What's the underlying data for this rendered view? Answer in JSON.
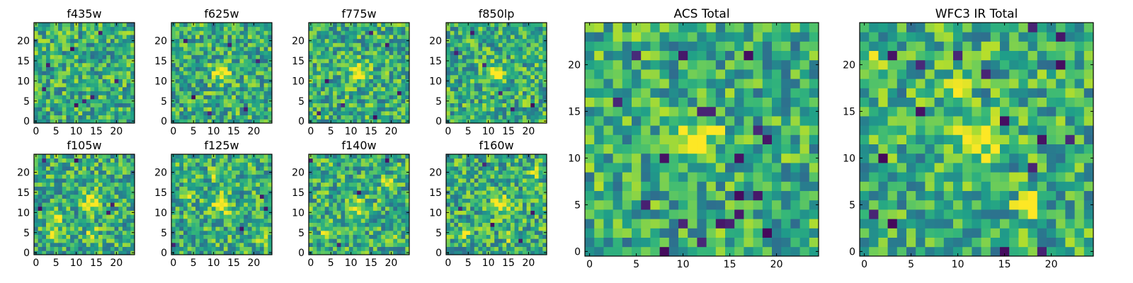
{
  "chart_data": [
    {
      "type": "heatmap",
      "title": "f435w",
      "xticks": [
        "0",
        "5",
        "10",
        "15",
        "20"
      ],
      "yticks": [
        "0",
        "5",
        "10",
        "15",
        "20"
      ],
      "xlim": [
        -0.5,
        24.5
      ],
      "ylim": [
        -0.5,
        24.5
      ],
      "peak": null,
      "hot_spots": [],
      "dark_spots": [
        [
          2,
          8
        ],
        [
          20,
          10
        ],
        [
          9,
          18
        ],
        [
          12,
          5
        ],
        [
          16,
          22
        ],
        [
          10,
          4
        ],
        [
          14,
          6
        ],
        [
          3,
          14
        ]
      ],
      "noise_seed": 11
    },
    {
      "type": "heatmap",
      "title": "f625w",
      "xticks": [
        "0",
        "5",
        "10",
        "15",
        "20"
      ],
      "yticks": [
        "0",
        "5",
        "10",
        "15",
        "20"
      ],
      "xlim": [
        -0.5,
        24.5
      ],
      "ylim": [
        -0.5,
        24.5
      ],
      "peak": [
        12,
        12
      ],
      "hot_spots": [],
      "dark_spots": [
        [
          5,
          6
        ],
        [
          18,
          3
        ],
        [
          21,
          15
        ],
        [
          3,
          20
        ],
        [
          14,
          19
        ],
        [
          9,
          2
        ]
      ],
      "noise_seed": 23
    },
    {
      "type": "heatmap",
      "title": "f775w",
      "xticks": [
        "0",
        "5",
        "10",
        "15",
        "20"
      ],
      "yticks": [
        "0",
        "5",
        "10",
        "15",
        "20"
      ],
      "xlim": [
        -0.5,
        24.5
      ],
      "ylim": [
        -0.5,
        24.5
      ],
      "peak": [
        12,
        12
      ],
      "hot_spots": [],
      "dark_spots": [
        [
          4,
          10
        ],
        [
          19,
          19
        ],
        [
          8,
          4
        ],
        [
          2,
          2
        ],
        [
          16,
          1
        ],
        [
          22,
          7
        ],
        [
          15,
          22
        ]
      ],
      "noise_seed": 37
    },
    {
      "type": "heatmap",
      "title": "f850lp",
      "xticks": [
        "0",
        "5",
        "10",
        "15",
        "20"
      ],
      "yticks": [
        "0",
        "5",
        "10",
        "15",
        "20"
      ],
      "xlim": [
        -0.5,
        24.5
      ],
      "ylim": [
        -0.5,
        24.5
      ],
      "peak": [
        12,
        12
      ],
      "hot_spots": [],
      "dark_spots": [
        [
          2,
          17
        ],
        [
          16,
          3
        ],
        [
          21,
          4
        ],
        [
          9,
          14
        ],
        [
          6,
          22
        ],
        [
          13,
          7
        ]
      ],
      "noise_seed": 51
    },
    {
      "type": "heatmap",
      "title": "f105w",
      "xticks": [
        "0",
        "5",
        "10",
        "15",
        "20"
      ],
      "yticks": [
        "0",
        "5",
        "10",
        "15",
        "20"
      ],
      "xlim": [
        -0.5,
        24.5
      ],
      "ylim": [
        -0.5,
        24.5
      ],
      "peak": [
        14,
        13
      ],
      "hot_spots": [
        [
          5,
          9
        ],
        [
          4,
          5
        ],
        [
          14,
          5
        ]
      ],
      "dark_spots": [
        [
          10,
          23
        ],
        [
          2,
          23
        ],
        [
          18,
          10
        ],
        [
          19,
          12
        ],
        [
          1,
          11
        ]
      ],
      "noise_seed": 67
    },
    {
      "type": "heatmap",
      "title": "f125w",
      "xticks": [
        "0",
        "5",
        "10",
        "15",
        "20"
      ],
      "yticks": [
        "0",
        "5",
        "10",
        "15",
        "20"
      ],
      "xlim": [
        -0.5,
        24.5
      ],
      "ylim": [
        -0.5,
        24.5
      ],
      "peak": [
        12,
        12
      ],
      "hot_spots": [
        [
          4,
          14
        ],
        [
          10,
          20
        ],
        [
          22,
          3
        ]
      ],
      "dark_spots": [
        [
          22,
          14
        ],
        [
          0,
          2
        ],
        [
          17,
          6
        ],
        [
          23,
          11
        ]
      ],
      "noise_seed": 79
    },
    {
      "type": "heatmap",
      "title": "f140w",
      "xticks": [
        "0",
        "5",
        "10",
        "15",
        "20"
      ],
      "yticks": [
        "0",
        "5",
        "10",
        "15",
        "20"
      ],
      "xlim": [
        -0.5,
        24.5
      ],
      "ylim": [
        -0.5,
        24.5
      ],
      "peak": [
        12,
        11
      ],
      "hot_spots": [
        [
          19,
          18
        ],
        [
          4,
          5
        ],
        [
          20,
          4
        ]
      ],
      "dark_spots": [
        [
          0,
          23
        ],
        [
          19,
          23
        ],
        [
          7,
          2
        ],
        [
          12,
          15
        ]
      ],
      "noise_seed": 83
    },
    {
      "type": "heatmap",
      "title": "f160w",
      "xticks": [
        "0",
        "5",
        "10",
        "15",
        "20"
      ],
      "yticks": [
        "0",
        "5",
        "10",
        "15",
        "20"
      ],
      "xlim": [
        -0.5,
        24.5
      ],
      "ylim": [
        -0.5,
        24.5
      ],
      "peak": [
        13,
        12
      ],
      "hot_spots": [
        [
          4,
          5
        ],
        [
          16,
          4
        ],
        [
          21,
          20
        ]
      ],
      "dark_spots": [
        [
          3,
          11
        ],
        [
          21,
          10
        ],
        [
          9,
          22
        ],
        [
          18,
          3
        ],
        [
          11,
          7
        ]
      ],
      "noise_seed": 97
    },
    {
      "type": "heatmap",
      "title": "ACS Total",
      "xticks": [
        "0",
        "5",
        "10",
        "15",
        "20"
      ],
      "yticks": [
        "0",
        "5",
        "10",
        "15",
        "20"
      ],
      "xlim": [
        -0.5,
        24.5
      ],
      "ylim": [
        -0.5,
        24.5
      ],
      "peak": [
        11.5,
        12
      ],
      "hot_spots": [],
      "dark_spots": [
        [
          3,
          16
        ],
        [
          8,
          10
        ],
        [
          8,
          0
        ],
        [
          16,
          10
        ],
        [
          16,
          4
        ],
        [
          16,
          6
        ],
        [
          18,
          13
        ],
        [
          12,
          15
        ],
        [
          13,
          15
        ],
        [
          19,
          12
        ],
        [
          14,
          3
        ],
        [
          12,
          1
        ],
        [
          6,
          5
        ],
        [
          18,
          6
        ],
        [
          10,
          21
        ],
        [
          17,
          21
        ],
        [
          5,
          21
        ],
        [
          19,
          2
        ],
        [
          10,
          3
        ],
        [
          15,
          3
        ]
      ],
      "noise_seed": 131
    },
    {
      "type": "heatmap",
      "title": "WFC3 IR Total",
      "xticks": [
        "0",
        "5",
        "10",
        "15",
        "20"
      ],
      "yticks": [
        "0",
        "5",
        "10",
        "15",
        "20"
      ],
      "xlim": [
        -0.5,
        24.5
      ],
      "ylim": [
        -0.5,
        24.5
      ],
      "peak": [
        12,
        12
      ],
      "hot_spots": [
        [
          17.5,
          5
        ],
        [
          1,
          20
        ],
        [
          10,
          17
        ]
      ],
      "dark_spots": [
        [
          3,
          21
        ],
        [
          6,
          20
        ],
        [
          18,
          24
        ],
        [
          21,
          23
        ],
        [
          19,
          12
        ],
        [
          15,
          0
        ],
        [
          19,
          0
        ],
        [
          13,
          19
        ],
        [
          6,
          15
        ],
        [
          22,
          12
        ],
        [
          1,
          4
        ],
        [
          3,
          3
        ],
        [
          10,
          21
        ],
        [
          18,
          9
        ],
        [
          2,
          10
        ],
        [
          21,
          20
        ],
        [
          15,
          14
        ]
      ],
      "noise_seed": 149
    }
  ]
}
